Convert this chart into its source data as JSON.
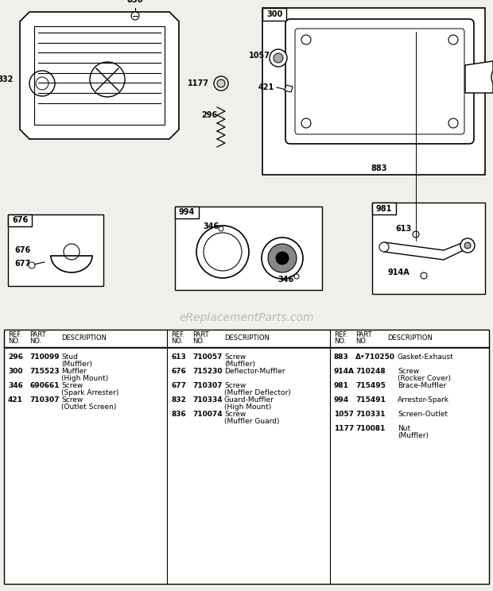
{
  "bg_color": "#f0f0eb",
  "watermark": "eReplacementParts.com",
  "col1_data": [
    [
      "296",
      "710099",
      "Stud",
      "(Muffler)"
    ],
    [
      "300",
      "715523",
      "Muffler",
      "(High Mount)"
    ],
    [
      "346",
      "690661",
      "Screw",
      "(Spark Arrester)"
    ],
    [
      "421",
      "710307",
      "Screw",
      "(Outlet Screen)"
    ]
  ],
  "col2_data": [
    [
      "613",
      "710057",
      "Screw",
      "(Muffler)"
    ],
    [
      "676",
      "715230",
      "Deflector-Muffler",
      ""
    ],
    [
      "677",
      "710307",
      "Screw",
      "(Muffler Deflector)"
    ],
    [
      "832",
      "710334",
      "Guard-Muffler",
      "(High Mount)"
    ],
    [
      "836",
      "710074",
      "Screw",
      "(Muffler Guard)"
    ]
  ],
  "col3_data": [
    [
      "883",
      "710250",
      "Gasket-Exhaust",
      ""
    ],
    [
      "914A",
      "710248",
      "Screw",
      "(Rocker Cover)"
    ],
    [
      "981",
      "715495",
      "Brace-Muffler",
      ""
    ],
    [
      "994",
      "715491",
      "Arrestor-Spark",
      ""
    ],
    [
      "1057",
      "710331",
      "Screen-Outlet",
      ""
    ],
    [
      "1177",
      "710081",
      "Nut",
      "(Muffler)"
    ]
  ]
}
